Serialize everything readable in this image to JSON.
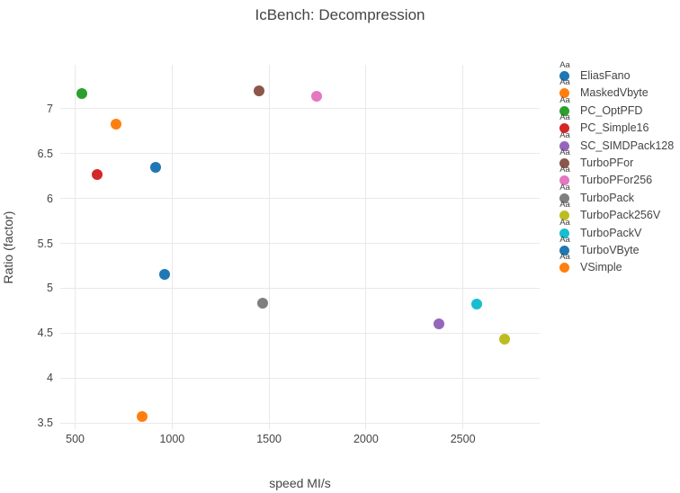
{
  "chart_data": {
    "type": "scatter",
    "title": "IcBench: Decompression",
    "xlabel": "speed MI/s",
    "ylabel": "Ratio (factor)",
    "xlim": [
      423,
      2896
    ],
    "ylim": [
      3.43,
      7.49
    ],
    "x_ticks": [
      500,
      1000,
      1500,
      2000,
      2500
    ],
    "y_ticks": [
      3.5,
      4,
      4.5,
      5,
      5.5,
      6,
      6.5,
      7
    ],
    "grid": true,
    "legend_position": "right",
    "series": [
      {
        "name": "EliasFano",
        "color": "#1f77b4",
        "x": 914,
        "y": 6.35
      },
      {
        "name": "MaskedVbyte",
        "color": "#ff7f0e",
        "x": 844,
        "y": 3.57
      },
      {
        "name": "PC_OptPFD",
        "color": "#2ca02c",
        "x": 533,
        "y": 7.17
      },
      {
        "name": "PC_Simple16",
        "color": "#d62728",
        "x": 612,
        "y": 6.27
      },
      {
        "name": "SC_SIMDPack128",
        "color": "#9467bd",
        "x": 2376,
        "y": 4.6
      },
      {
        "name": "TurboPFor",
        "color": "#8c564b",
        "x": 1449,
        "y": 7.2
      },
      {
        "name": "TurboPFor256",
        "color": "#e377c2",
        "x": 1744,
        "y": 7.14
      },
      {
        "name": "TurboPack",
        "color": "#7f7f7f",
        "x": 1467,
        "y": 4.83
      },
      {
        "name": "TurboPack256V",
        "color": "#bcbd22",
        "x": 2717,
        "y": 4.43
      },
      {
        "name": "TurboPackV",
        "color": "#17becf",
        "x": 2573,
        "y": 4.82
      },
      {
        "name": "TurboVByte",
        "color": "#1f77b4",
        "x": 962,
        "y": 5.15
      },
      {
        "name": "VSimple",
        "color": "#ff7f0e",
        "x": 710,
        "y": 6.83
      }
    ]
  },
  "legend": {
    "sample_label": "Aa"
  },
  "style_colors": {
    "text": "#444444",
    "gridline": "#e9e9e9",
    "background": "#ffffff"
  }
}
